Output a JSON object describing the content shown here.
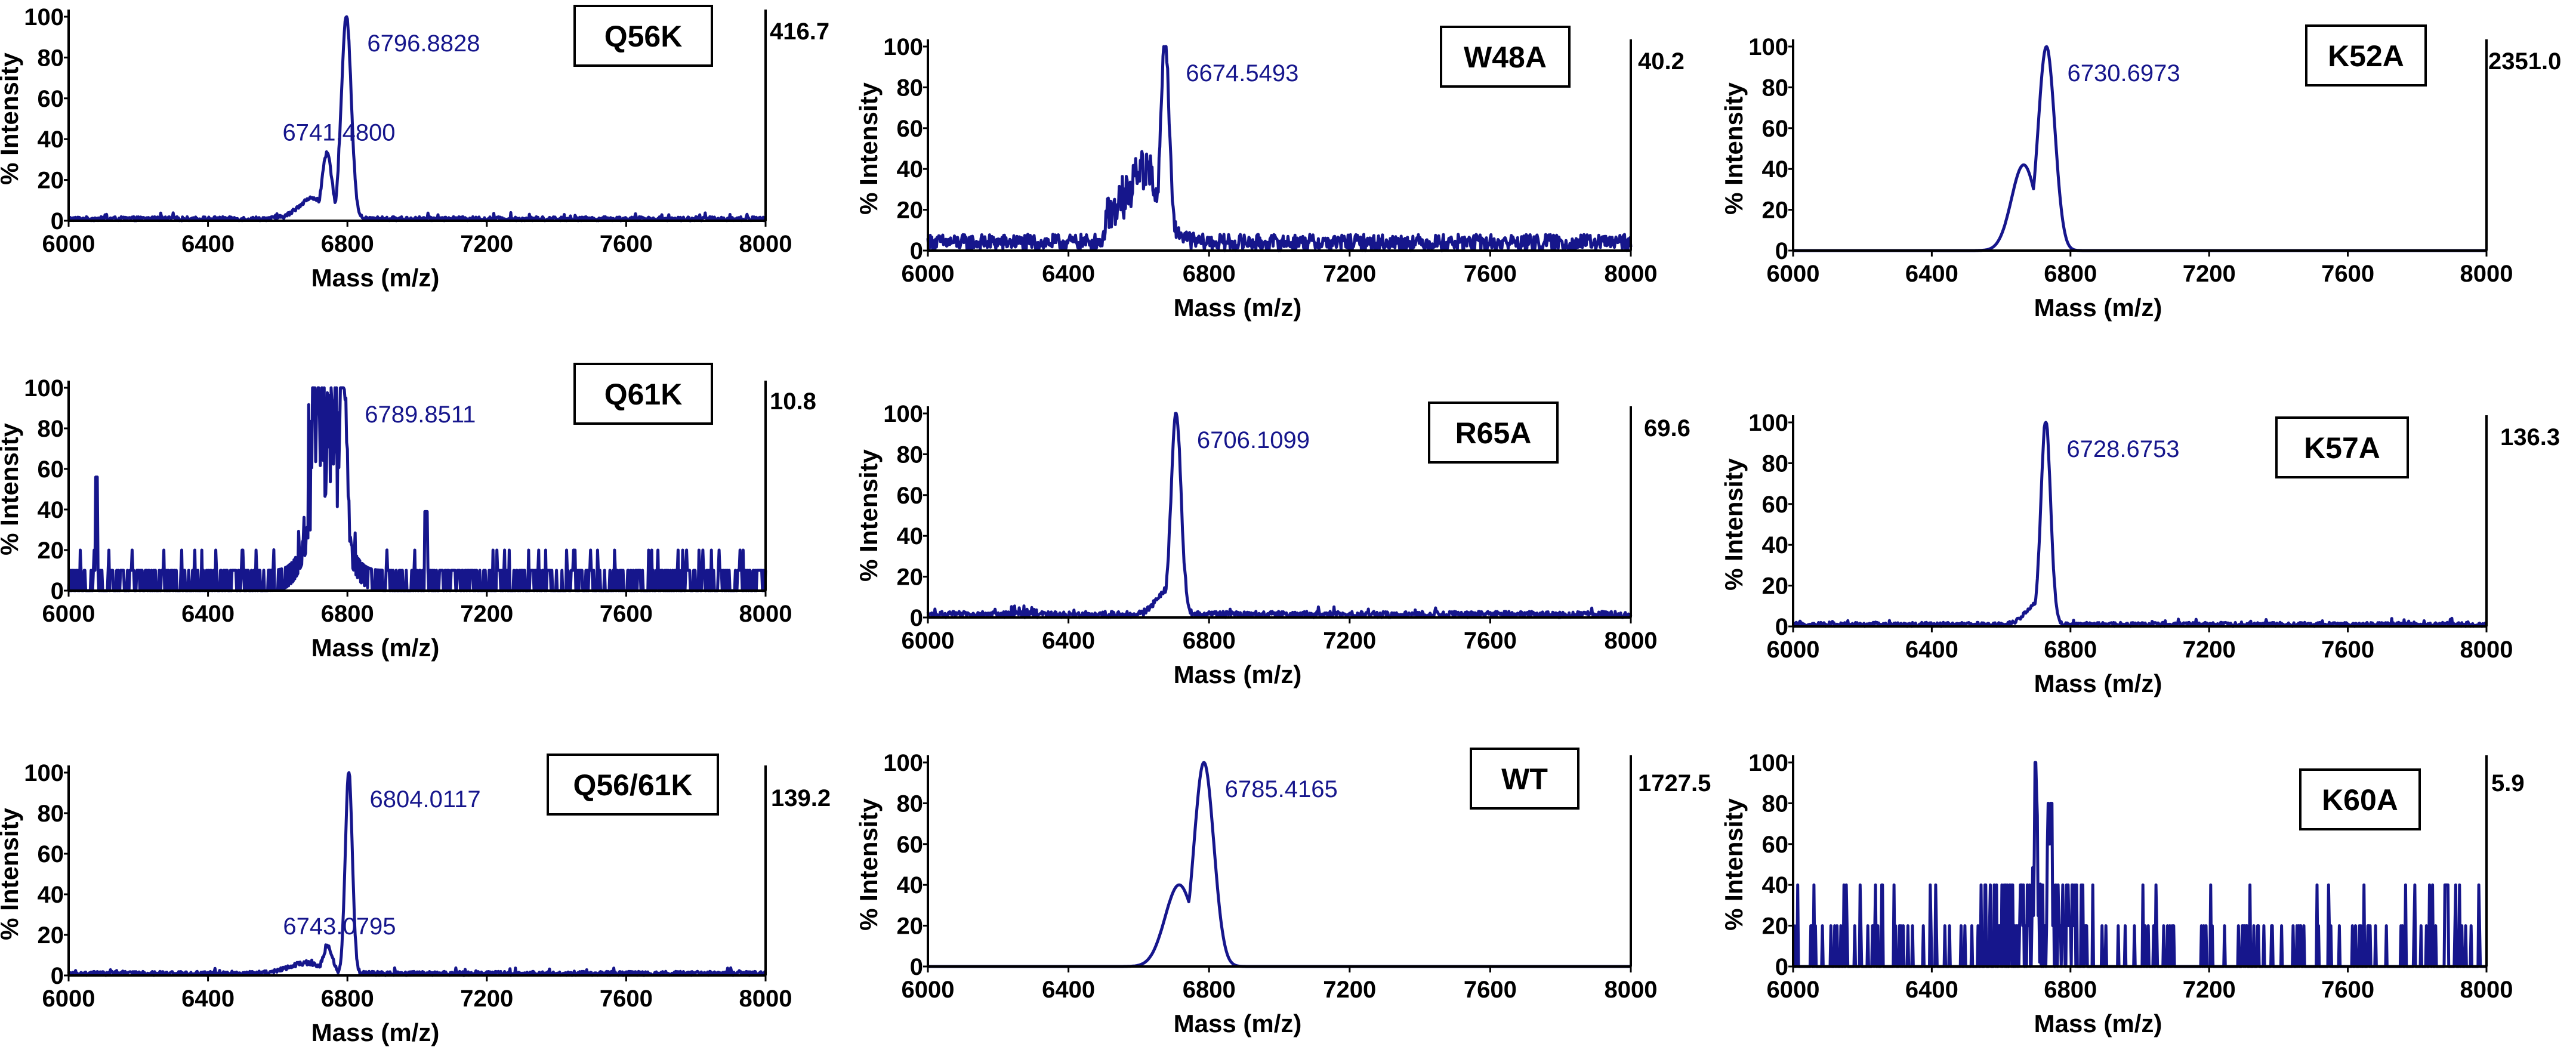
{
  "figure": {
    "x_tick_labels": [
      "6000",
      "6400",
      "6800",
      "7200",
      "7600",
      "8000"
    ],
    "y_tick_labels": [
      "0",
      "20",
      "40",
      "60",
      "80",
      "100"
    ],
    "colors": {
      "trace": "#16168c",
      "peak_label": "#16168c",
      "axis": "#000000"
    }
  },
  "chart_data": [
    {
      "type": "line",
      "id": "q56k",
      "variant": "Q56K",
      "max_intensity": "416.7",
      "xlabel": "Mass (m/z)",
      "ylabel": "% Intensity",
      "xlim": [
        6000,
        8000
      ],
      "ylim": [
        0,
        100
      ],
      "x_ticks": [
        6000,
        6400,
        6800,
        7200,
        7600,
        8000
      ],
      "y_ticks": [
        0,
        20,
        40,
        60,
        80,
        100
      ],
      "peaks": [
        {
          "mass": 6796.8828,
          "label": "6796.8828",
          "intensity": 100,
          "width": 14,
          "main": true
        },
        {
          "mass": 6741.48,
          "label": "6741.4800",
          "intensity": 32,
          "width": 14,
          "main": false
        }
      ],
      "shoulders": [
        {
          "mass": 6700,
          "intensity": 10,
          "width": 40
        }
      ],
      "noise_level": 2,
      "noise_style": "low"
    },
    {
      "type": "line",
      "id": "w48a",
      "variant": "W48A",
      "max_intensity": "40.2",
      "xlabel": "Mass (m/z)",
      "ylabel": "% Intensity",
      "xlim": [
        6000,
        8000
      ],
      "ylim": [
        0,
        100
      ],
      "x_ticks": [
        6000,
        6400,
        6800,
        7200,
        7600,
        8000
      ],
      "y_ticks": [
        0,
        20,
        40,
        60,
        80,
        100
      ],
      "peaks": [
        {
          "mass": 6674.5493,
          "label": "6674.5493",
          "intensity": 100,
          "width": 12,
          "main": true
        }
      ],
      "shoulders": [
        {
          "mass": 6620,
          "intensity": 28,
          "width": 50
        }
      ],
      "noise_level": 8,
      "noise_style": "moderate"
    },
    {
      "type": "line",
      "id": "k52a",
      "variant": "K52A",
      "max_intensity": "2351.0",
      "xlabel": "Mass (m/z)",
      "ylabel": "% Intensity",
      "xlim": [
        6000,
        8000
      ],
      "ylim": [
        0,
        100
      ],
      "x_ticks": [
        6000,
        6400,
        6800,
        7200,
        7600,
        8000
      ],
      "y_ticks": [
        0,
        20,
        40,
        60,
        80,
        100
      ],
      "peaks": [
        {
          "mass": 6730.6973,
          "label": "6730.6973",
          "intensity": 100,
          "width": 24,
          "main": true
        }
      ],
      "shoulders": [
        {
          "mass": 6665,
          "intensity": 42,
          "width": 35
        }
      ],
      "noise_level": 0,
      "noise_style": "none"
    },
    {
      "type": "line",
      "id": "q61k",
      "variant": "Q61K",
      "max_intensity": "10.8",
      "xlabel": "Mass (m/z)",
      "ylabel": "% Intensity",
      "xlim": [
        6000,
        8000
      ],
      "ylim": [
        0,
        100
      ],
      "x_ticks": [
        6000,
        6400,
        6800,
        7200,
        7600,
        8000
      ],
      "y_ticks": [
        0,
        20,
        40,
        60,
        80,
        100
      ],
      "peaks": [
        {
          "mass": 6789.8511,
          "label": "6789.8511",
          "intensity": 100,
          "width": 10,
          "main": true
        }
      ],
      "shoulders": [
        {
          "mass": 6740,
          "intensity": 45,
          "width": 45
        }
      ],
      "noise_level": 10,
      "noise_style": "quantized"
    },
    {
      "type": "line",
      "id": "r65a",
      "variant": "R65A",
      "max_intensity": "69.6",
      "xlabel": "Mass (m/z)",
      "ylabel": "% Intensity",
      "xlim": [
        6000,
        8000
      ],
      "ylim": [
        0,
        100
      ],
      "x_ticks": [
        6000,
        6400,
        6800,
        7200,
        7600,
        8000
      ],
      "y_ticks": [
        0,
        20,
        40,
        60,
        80,
        100
      ],
      "peaks": [
        {
          "mass": 6706.1099,
          "label": "6706.1099",
          "intensity": 100,
          "width": 14,
          "main": true
        }
      ],
      "shoulders": [
        {
          "mass": 6680,
          "intensity": 12,
          "width": 30
        }
      ],
      "noise_level": 3,
      "noise_style": "low"
    },
    {
      "type": "line",
      "id": "k57a",
      "variant": "K57A",
      "max_intensity": "136.3",
      "xlabel": "Mass (m/z)",
      "ylabel": "% Intensity",
      "xlim": [
        6000,
        8000
      ],
      "ylim": [
        0,
        100
      ],
      "x_ticks": [
        6000,
        6400,
        6800,
        7200,
        7600,
        8000
      ],
      "y_ticks": [
        0,
        20,
        40,
        60,
        80,
        100
      ],
      "peaks": [
        {
          "mass": 6728.6753,
          "label": "6728.6753",
          "intensity": 100,
          "width": 14,
          "main": true
        }
      ],
      "shoulders": [
        {
          "mass": 6700,
          "intensity": 10,
          "width": 30
        }
      ],
      "noise_level": 2,
      "noise_style": "low"
    },
    {
      "type": "line",
      "id": "q5661k",
      "variant": "Q56/61K",
      "max_intensity": "139.2",
      "xlabel": "Mass (m/z)",
      "ylabel": "% Intensity",
      "xlim": [
        6000,
        8000
      ],
      "ylim": [
        0,
        100
      ],
      "x_ticks": [
        6000,
        6400,
        6800,
        7200,
        7600,
        8000
      ],
      "y_ticks": [
        0,
        20,
        40,
        60,
        80,
        100
      ],
      "peaks": [
        {
          "mass": 6804.0117,
          "label": "6804.0117",
          "intensity": 100,
          "width": 10,
          "main": true
        },
        {
          "mass": 6743.0795,
          "label": "6743.0795",
          "intensity": 13,
          "width": 14,
          "main": false
        }
      ],
      "shoulders": [
        {
          "mass": 6680,
          "intensity": 5,
          "width": 50
        }
      ],
      "noise_level": 2,
      "noise_style": "low"
    },
    {
      "type": "line",
      "id": "wt",
      "variant": "WT",
      "max_intensity": "1727.5",
      "xlabel": "Mass (m/z)",
      "ylabel": "% Intensity",
      "xlim": [
        6000,
        8000
      ],
      "ylim": [
        0,
        100
      ],
      "x_ticks": [
        6000,
        6400,
        6800,
        7200,
        7600,
        8000
      ],
      "y_ticks": [
        0,
        20,
        40,
        60,
        80,
        100
      ],
      "peaks": [
        {
          "mass": 6785.4165,
          "label": "6785.4165",
          "intensity": 100,
          "width": 28,
          "main": true
        }
      ],
      "shoulders": [
        {
          "mass": 6715,
          "intensity": 40,
          "width": 40
        }
      ],
      "noise_level": 0,
      "noise_style": "none"
    },
    {
      "type": "line",
      "id": "k60a",
      "variant": "K60A",
      "max_intensity": "5.9",
      "xlabel": "Mass (m/z)",
      "ylabel": "% Intensity",
      "xlim": [
        6000,
        8000
      ],
      "ylim": [
        0,
        100
      ],
      "x_ticks": [
        6000,
        6400,
        6800,
        7200,
        7600,
        8000
      ],
      "y_ticks": [
        0,
        20,
        40,
        60,
        80,
        100
      ],
      "peaks": [
        {
          "mass": 6700,
          "label": "",
          "intensity": 100,
          "width": 4,
          "main": false
        }
      ],
      "shoulders": [],
      "noise_level": 20,
      "noise_style": "sparse"
    }
  ]
}
